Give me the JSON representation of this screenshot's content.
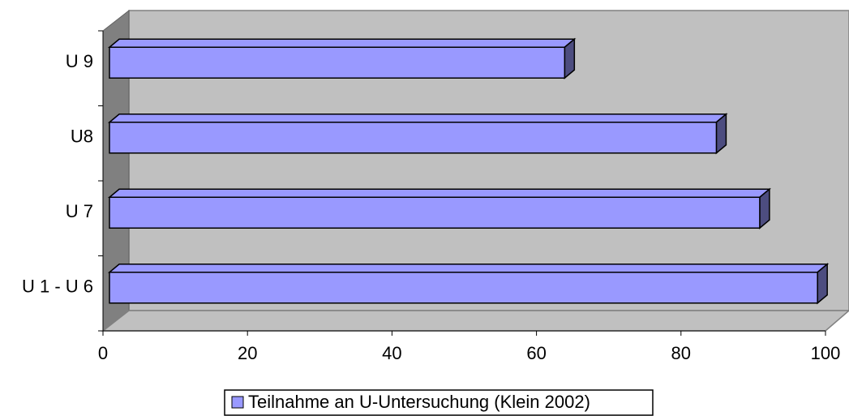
{
  "chart_data": {
    "type": "bar3d_horizontal",
    "categories": [
      "U 1 - U 6",
      "U 7",
      "U8",
      "U 9"
    ],
    "series": [
      {
        "name": "Teilnahme an U-Untersuchung (Klein 2002)",
        "color": "#9999ff",
        "values": [
          98,
          90,
          84,
          63
        ]
      }
    ],
    "xlim": [
      0,
      100
    ],
    "xticks": [
      0,
      20,
      40,
      60,
      80,
      100
    ],
    "legend": "bottom"
  }
}
